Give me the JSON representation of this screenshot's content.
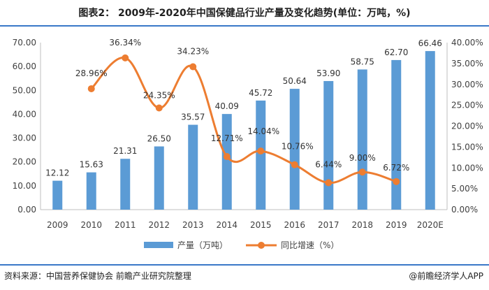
{
  "title": "图表2： 2009年-2020年中国保健品行业产量及变化趋势(单位：万吨，%)",
  "source": "资料来源：中国营养保健协会 前瞻产业研究院整理",
  "brand": "@前瞻经济学人APP",
  "colors": {
    "bar": "#5b9bd5",
    "line": "#ed7d31",
    "rule": "#3a78c8"
  },
  "chart_data": {
    "type": "bar",
    "categories": [
      "2009",
      "2010",
      "2011",
      "2012",
      "2013",
      "2014",
      "2015",
      "2016",
      "2017",
      "2018",
      "2019",
      "2020E"
    ],
    "series": [
      {
        "name": "产量（万吨）",
        "type": "bar",
        "axis": "left",
        "values": [
          12.12,
          15.63,
          21.31,
          26.5,
          35.57,
          40.09,
          45.72,
          50.64,
          53.9,
          58.75,
          62.7,
          66.46
        ],
        "labels": [
          "12.12",
          "15.63",
          "21.31",
          "26.50",
          "35.57",
          "40.09",
          "45.72",
          "50.64",
          "53.90",
          "58.75",
          "62.70",
          "66.46"
        ]
      },
      {
        "name": "同比增速（%）",
        "type": "line",
        "axis": "right",
        "values": [
          null,
          28.96,
          36.34,
          24.35,
          34.23,
          12.71,
          14.04,
          10.76,
          6.44,
          9.0,
          6.72,
          null
        ],
        "labels": [
          null,
          "28.96%",
          "36.34%",
          "24.35%",
          "34.23%",
          "12.71%",
          "14.04%",
          "10.76%",
          "6.44%",
          "9.00%",
          "6.72%",
          null
        ]
      }
    ],
    "y_left": {
      "min": 0,
      "max": 70,
      "step": 10,
      "ticks": [
        "0.00",
        "10.00",
        "20.00",
        "30.00",
        "40.00",
        "50.00",
        "60.00",
        "70.00"
      ]
    },
    "y_right": {
      "min": 0,
      "max": 40,
      "step": 5,
      "ticks": [
        "0.00%",
        "5.00%",
        "10.00%",
        "15.00%",
        "20.00%",
        "25.00%",
        "30.00%",
        "35.00%",
        "40.00%"
      ]
    },
    "grid": false,
    "legend": "bottom-center"
  }
}
